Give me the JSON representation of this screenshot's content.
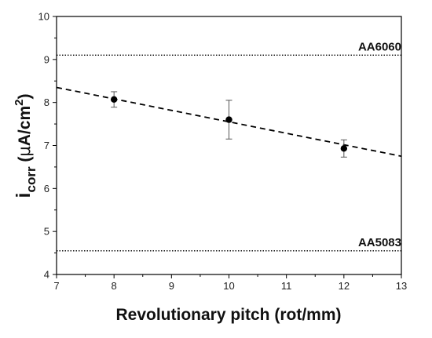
{
  "chart_data": {
    "type": "scatter",
    "xlabel": "Revolutionary pitch (rot/mm)",
    "ylabel": {
      "main": "i",
      "subscript": "corr",
      "unit_prefix": " (",
      "mu": "μ",
      "unit_body": "A/cm",
      "superscript": "2",
      "unit_suffix": ")"
    },
    "xlim": [
      7,
      13
    ],
    "ylim": [
      4,
      10
    ],
    "xticks": [
      "7",
      "8",
      "9",
      "10",
      "11",
      "12",
      "13"
    ],
    "yticks": [
      "4",
      "5",
      "6",
      "7",
      "8",
      "9",
      "10"
    ],
    "grid": false,
    "series": [
      {
        "x": [
          8,
          10,
          12
        ],
        "y": [
          8.07,
          7.6,
          6.93
        ],
        "yerr": [
          0.18,
          0.45,
          0.2
        ],
        "marker": "circle",
        "color": "#000000"
      }
    ],
    "fit_line": {
      "x": [
        7,
        13
      ],
      "y": [
        8.35,
        6.75
      ],
      "style": "dashed",
      "color": "#000000"
    },
    "reference_lines": [
      {
        "label": "AA6060",
        "y": 9.1,
        "style": "dotted"
      },
      {
        "label": "AA5083",
        "y": 4.55,
        "style": "dotted"
      }
    ]
  }
}
